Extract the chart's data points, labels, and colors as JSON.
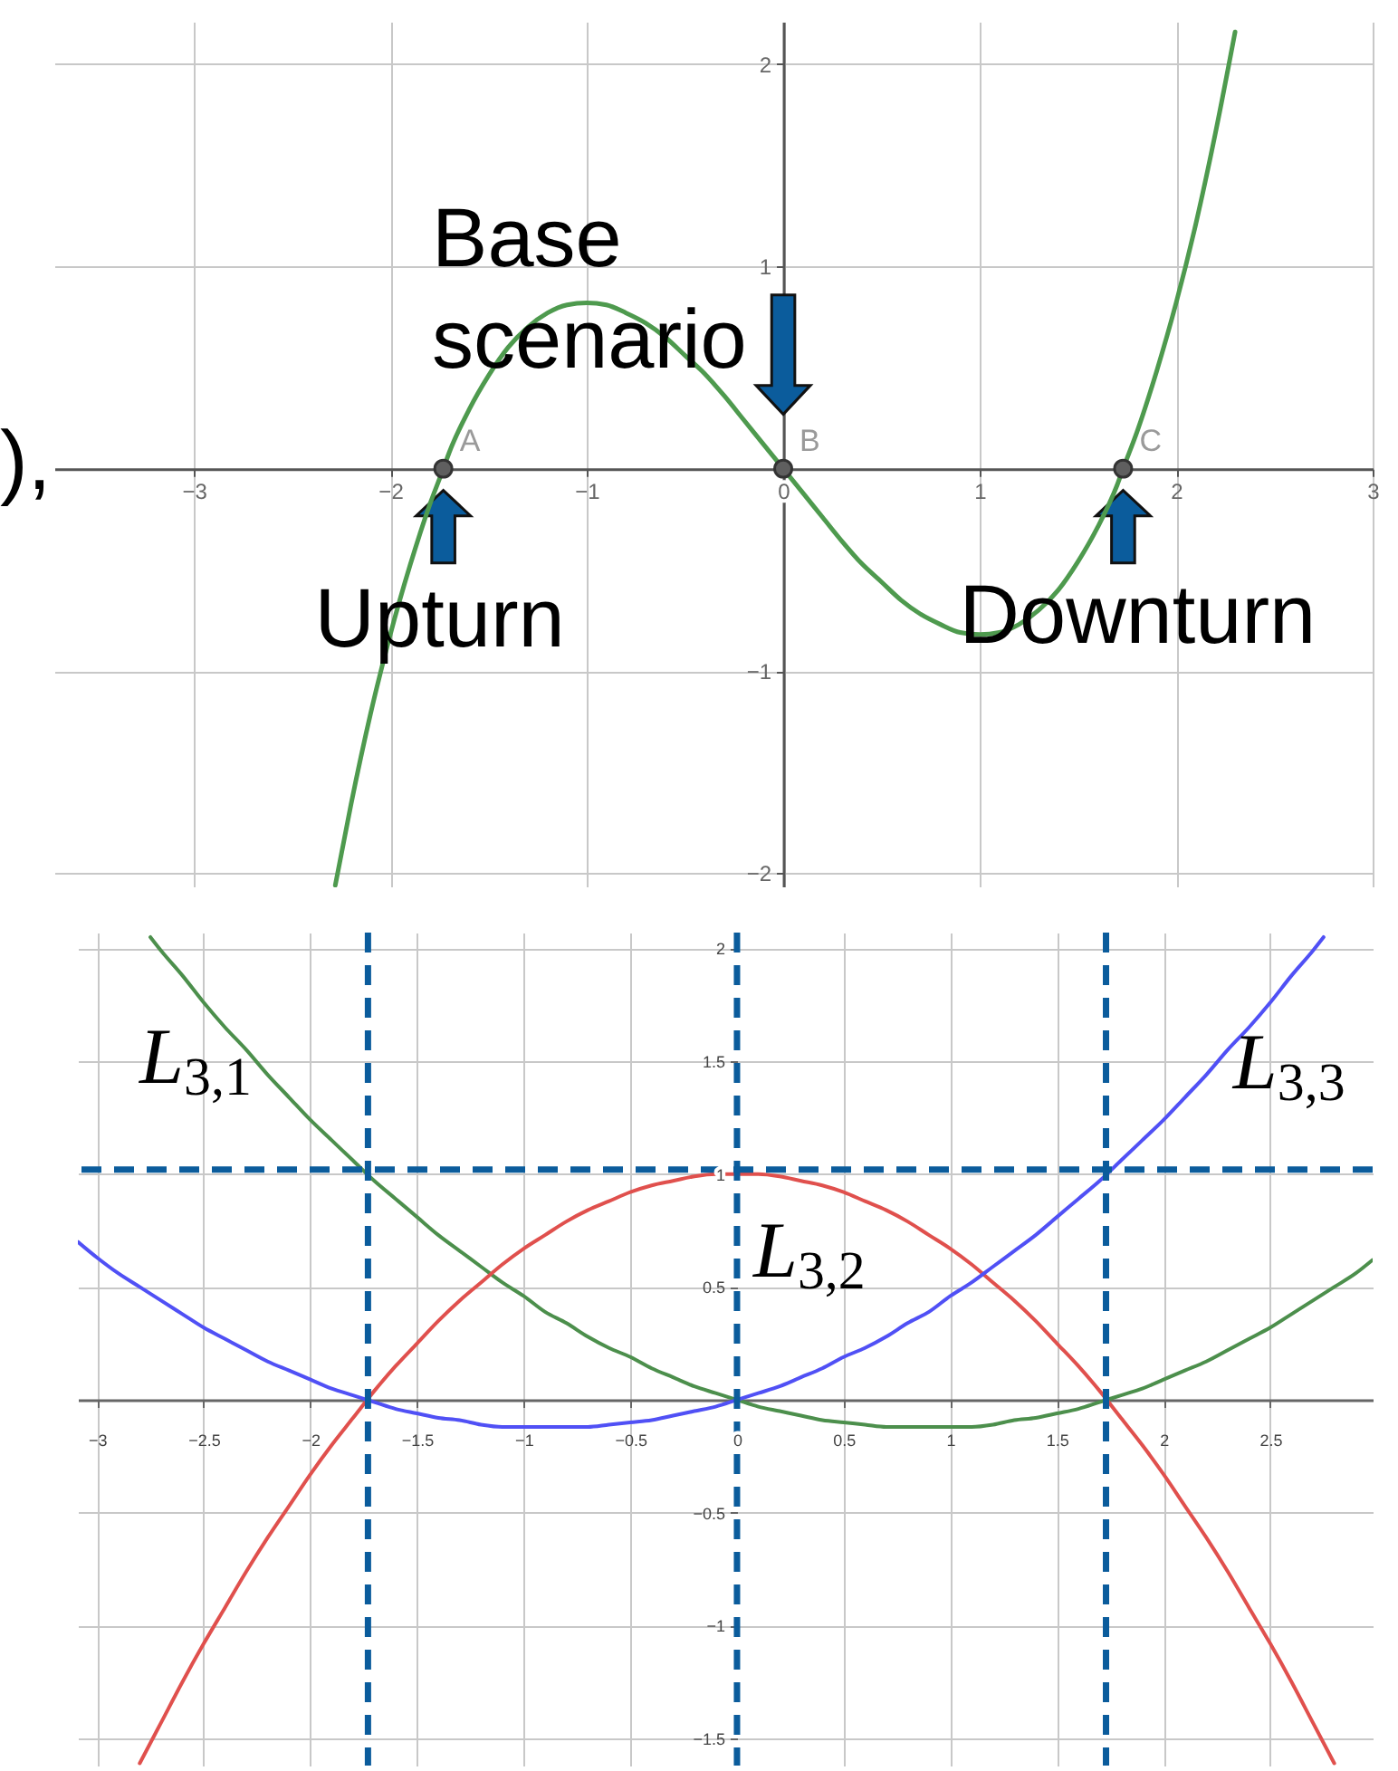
{
  "chart_data": [
    {
      "type": "line",
      "xlim": [
        -3.71,
        3.0
      ],
      "ylim": [
        -2.07,
        2.21
      ],
      "xticks": [
        -3,
        -2,
        -1,
        0,
        1,
        2,
        3
      ],
      "yticks": [
        -2,
        -1,
        1,
        2
      ],
      "grid": true,
      "series": [
        {
          "color": "#4e9a4e",
          "x": [
            -2.28,
            -2.2,
            -2.1,
            -2,
            -1.9,
            -1.8,
            -1.73,
            -1.7,
            -1.6,
            -1.5,
            -1.4,
            -1.3,
            -1.2,
            -1.1,
            -1,
            -0.9,
            -0.8,
            -0.7,
            -0.6,
            -0.5,
            -0.4,
            -0.3,
            -0.2,
            -0.1,
            0,
            0.1,
            0.2,
            0.3,
            0.4,
            0.5,
            0.6,
            0.7,
            0.8,
            0.9,
            1,
            1.1,
            1.2,
            1.3,
            1.4,
            1.5,
            1.6,
            1.7,
            1.73,
            1.8,
            1.9,
            2,
            2.1,
            2.2,
            2.3
          ],
          "values": [
            -2.06,
            -1.66,
            -1.21,
            -0.82,
            -0.48,
            -0.18,
            0,
            0.08,
            0.29,
            0.46,
            0.6,
            0.7,
            0.77,
            0.81,
            0.82,
            0.81,
            0.77,
            0.72,
            0.65,
            0.56,
            0.47,
            0.36,
            0.24,
            0.12,
            0,
            -0.12,
            -0.24,
            -0.36,
            -0.47,
            -0.56,
            -0.65,
            -0.72,
            -0.77,
            -0.81,
            -0.82,
            -0.81,
            -0.77,
            -0.7,
            -0.6,
            -0.46,
            -0.29,
            -0.08,
            0,
            0.18,
            0.48,
            0.82,
            1.21,
            1.66,
            2.16
          ]
        },
        {
          "type": "scatter",
          "marker": "circle",
          "color": "#5f5f5f",
          "x": [
            -1.73,
            0,
            1.73
          ],
          "values": [
            0,
            0,
            0
          ]
        }
      ],
      "annotations": [
        "),",
        {
          "text": "Base scenario",
          "x": 0,
          "y": 0
        },
        {
          "text": "Upturn",
          "x": -1.73,
          "y": 0
        },
        {
          "text": "Downturn",
          "x": 1.73,
          "y": 0
        },
        {
          "text": "A",
          "x": -1.73,
          "y": 0
        },
        {
          "text": "B",
          "x": 0,
          "y": 0
        },
        {
          "text": "C",
          "x": 1.73,
          "y": 0
        }
      ]
    },
    {
      "type": "line",
      "xlim": [
        -3.09,
        2.98
      ],
      "ylim": [
        -1.62,
        2.07
      ],
      "xticks": [
        -3,
        -2.5,
        -2,
        -1.5,
        -1,
        -0.5,
        0,
        0.5,
        1,
        1.5,
        2,
        2.5
      ],
      "yticks": [
        -1.5,
        -1,
        -0.5,
        0.5,
        1,
        1.5,
        2
      ],
      "grid": true,
      "series": [
        {
          "name": "L$_{3,1}$",
          "color": "#4c8f4c",
          "x": [
            -2.75,
            -2.7,
            -2.6,
            -2.5,
            -2.4,
            -2.3,
            -2.2,
            -2.1,
            -2,
            -1.9,
            -1.8,
            -1.7,
            -1.6,
            -1.5,
            -1.4,
            -1.3,
            -1.2,
            -1.1,
            -1,
            -0.9,
            -0.8,
            -0.7,
            -0.6,
            -0.5,
            -0.4,
            -0.3,
            -0.2,
            -0.1,
            0,
            0.1,
            0.2,
            0.3,
            0.4,
            0.5,
            0.6,
            0.7,
            0.8,
            0.9,
            1,
            1.1,
            1.2,
            1.3,
            1.4,
            1.5,
            1.6,
            1.7,
            1.8,
            1.9,
            2,
            2.1,
            2.2,
            2.3,
            2.4,
            2.5,
            2.6,
            2.7,
            2.8,
            2.9,
            2.98
          ],
          "values": [
            2.05,
            1.99,
            1.88,
            1.76,
            1.65,
            1.55,
            1.44,
            1.34,
            1.24,
            1.15,
            1.06,
            0.97,
            0.89,
            0.81,
            0.73,
            0.66,
            0.59,
            0.52,
            0.46,
            0.39,
            0.34,
            0.28,
            0.23,
            0.19,
            0.14,
            0.1,
            0.06,
            0.03,
            0,
            -0.03,
            -0.05,
            -0.07,
            -0.09,
            -0.1,
            -0.11,
            -0.12,
            -0.12,
            -0.12,
            -0.12,
            -0.12,
            -0.11,
            -0.09,
            -0.08,
            -0.06,
            -0.04,
            -0.01,
            0.02,
            0.05,
            0.09,
            0.13,
            0.17,
            0.22,
            0.27,
            0.32,
            0.38,
            0.44,
            0.5,
            0.56,
            0.62
          ]
        },
        {
          "name": "L$_{3,2}$",
          "color": "#e0504d",
          "x": [
            -2.8,
            -2.7,
            -2.6,
            -2.5,
            -2.4,
            -2.3,
            -2.2,
            -2.1,
            -2,
            -1.9,
            -1.8,
            -1.7,
            -1.6,
            -1.5,
            -1.4,
            -1.3,
            -1.2,
            -1.1,
            -1,
            -0.9,
            -0.8,
            -0.7,
            -0.6,
            -0.5,
            -0.4,
            -0.3,
            -0.2,
            -0.1,
            0,
            0.1,
            0.2,
            0.3,
            0.4,
            0.5,
            0.6,
            0.7,
            0.8,
            0.9,
            1,
            1.1,
            1.2,
            1.3,
            1.4,
            1.5,
            1.6,
            1.7,
            1.8,
            1.9,
            2,
            2.1,
            2.2,
            2.3,
            2.4,
            2.5,
            2.6,
            2.7,
            2.8
          ],
          "values": [
            -1.61,
            -1.43,
            -1.25,
            -1.08,
            -0.92,
            -0.76,
            -0.61,
            -0.47,
            -0.33,
            -0.2,
            -0.08,
            0.04,
            0.15,
            0.25,
            0.35,
            0.44,
            0.52,
            0.6,
            0.67,
            0.73,
            0.79,
            0.84,
            0.88,
            0.92,
            0.95,
            0.97,
            0.99,
            1,
            1,
            1,
            0.99,
            0.97,
            0.95,
            0.92,
            0.88,
            0.84,
            0.79,
            0.73,
            0.67,
            0.6,
            0.52,
            0.44,
            0.35,
            0.25,
            0.15,
            0.04,
            -0.08,
            -0.2,
            -0.33,
            -0.47,
            -0.61,
            -0.76,
            -0.92,
            -1.08,
            -1.25,
            -1.43,
            -1.61
          ]
        },
        {
          "name": "L$_{3,3}$",
          "color": "#5050f5",
          "x": [
            -3.09,
            -3,
            -2.9,
            -2.8,
            -2.7,
            -2.6,
            -2.5,
            -2.4,
            -2.3,
            -2.2,
            -2.1,
            -2,
            -1.9,
            -1.8,
            -1.7,
            -1.6,
            -1.5,
            -1.4,
            -1.3,
            -1.2,
            -1.1,
            -1,
            -0.9,
            -0.8,
            -0.7,
            -0.6,
            -0.5,
            -0.4,
            -0.3,
            -0.2,
            -0.1,
            0,
            0.1,
            0.2,
            0.3,
            0.4,
            0.5,
            0.6,
            0.7,
            0.8,
            0.9,
            1,
            1.1,
            1.2,
            1.3,
            1.4,
            1.5,
            1.6,
            1.7,
            1.8,
            1.9,
            2,
            2.1,
            2.2,
            2.3,
            2.4,
            2.5,
            2.6,
            2.7,
            2.75
          ],
          "values": [
            0.7,
            0.63,
            0.56,
            0.5,
            0.44,
            0.38,
            0.32,
            0.27,
            0.22,
            0.17,
            0.13,
            0.09,
            0.05,
            0.02,
            -0.01,
            -0.04,
            -0.06,
            -0.08,
            -0.09,
            -0.11,
            -0.12,
            -0.12,
            -0.12,
            -0.12,
            -0.12,
            -0.11,
            -0.1,
            -0.09,
            -0.07,
            -0.05,
            -0.03,
            0,
            0.03,
            0.06,
            0.1,
            0.14,
            0.19,
            0.23,
            0.28,
            0.34,
            0.39,
            0.46,
            0.52,
            0.59,
            0.66,
            0.73,
            0.81,
            0.89,
            0.97,
            1.06,
            1.15,
            1.24,
            1.34,
            1.44,
            1.55,
            1.65,
            1.76,
            1.88,
            1.99,
            2.05
          ]
        }
      ],
      "ref_lines": [
        {
          "axis": "x",
          "value": -1.73,
          "color": "#0b5c9c",
          "line_style": "dashed"
        },
        {
          "axis": "x",
          "value": 1.73,
          "color": "#0b5c9c",
          "line_style": "dashed"
        },
        {
          "axis": "x",
          "value": 0,
          "color": "#0b5c9c",
          "line_style": "dashed"
        },
        {
          "axis": "y",
          "value": 1.02,
          "color": "#0b5c9c",
          "line_style": "dashed"
        }
      ]
    }
  ]
}
